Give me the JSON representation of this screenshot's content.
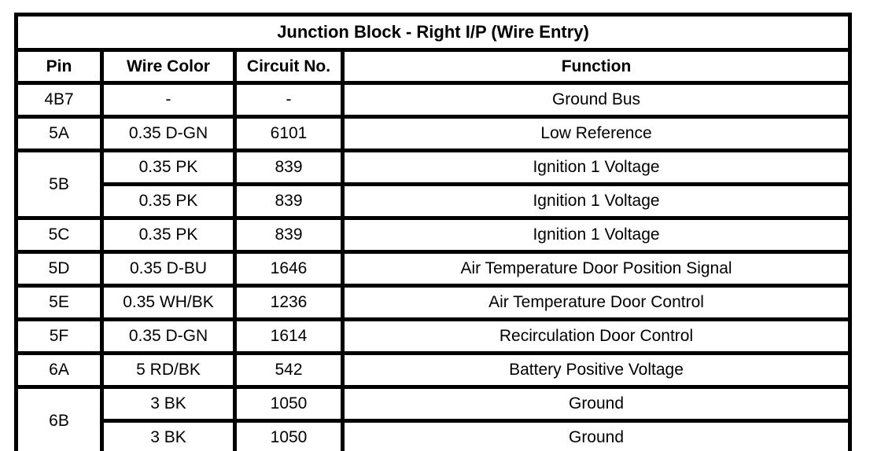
{
  "colors": {
    "border": "#000000",
    "background": "#ffffff",
    "text": "#000000"
  },
  "table": {
    "title": "Junction Block - Right I/P (Wire Entry)",
    "columns": [
      "Pin",
      "Wire Color",
      "Circuit No.",
      "Function"
    ],
    "groups": [
      {
        "pin": "4B7",
        "entries": [
          {
            "wire_color": "-",
            "circuit_no": "-",
            "function": "Ground Bus"
          }
        ]
      },
      {
        "pin": "5A",
        "entries": [
          {
            "wire_color": "0.35 D-GN",
            "circuit_no": "6101",
            "function": "Low Reference"
          }
        ]
      },
      {
        "pin": "5B",
        "entries": [
          {
            "wire_color": "0.35 PK",
            "circuit_no": "839",
            "function": "Ignition 1 Voltage"
          },
          {
            "wire_color": "0.35 PK",
            "circuit_no": "839",
            "function": "Ignition 1 Voltage"
          }
        ]
      },
      {
        "pin": "5C",
        "entries": [
          {
            "wire_color": "0.35 PK",
            "circuit_no": "839",
            "function": "Ignition 1 Voltage"
          }
        ]
      },
      {
        "pin": "5D",
        "entries": [
          {
            "wire_color": "0.35 D-BU",
            "circuit_no": "1646",
            "function": "Air Temperature Door Position Signal"
          }
        ]
      },
      {
        "pin": "5E",
        "entries": [
          {
            "wire_color": "0.35 WH/BK",
            "circuit_no": "1236",
            "function": "Air Temperature Door Control"
          }
        ]
      },
      {
        "pin": "5F",
        "entries": [
          {
            "wire_color": "0.35 D-GN",
            "circuit_no": "1614",
            "function": "Recirculation Door Control"
          }
        ]
      },
      {
        "pin": "6A",
        "entries": [
          {
            "wire_color": "5 RD/BK",
            "circuit_no": "542",
            "function": "Battery Positive Voltage"
          }
        ]
      },
      {
        "pin": "6B",
        "entries": [
          {
            "wire_color": "3 BK",
            "circuit_no": "1050",
            "function": "Ground"
          },
          {
            "wire_color": "3 BK",
            "circuit_no": "1050",
            "function": "Ground"
          }
        ]
      }
    ]
  }
}
